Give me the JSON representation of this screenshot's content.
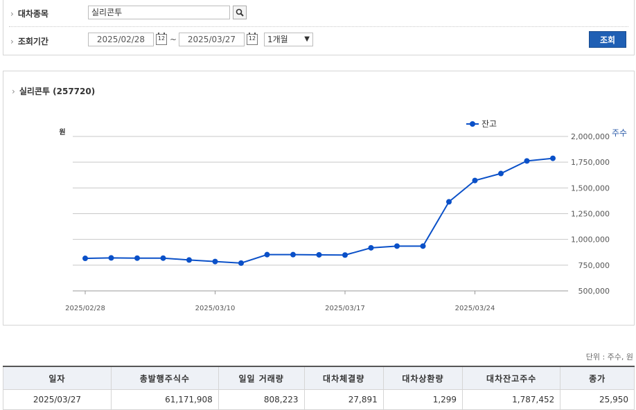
{
  "search": {
    "stock_label": "대차종목",
    "stock_value": "실리콘투",
    "period_label": "조회기간",
    "date_from": "2025/02/28",
    "date_to": "2025/03/27",
    "tilde": "~",
    "period_select": "1개월",
    "query_button": "조회",
    "calendar_icon_text": "12"
  },
  "chart_data": {
    "type": "line",
    "title": "실리콘투 (257720)",
    "left_unit": "원",
    "right_unit": "주수",
    "series": [
      {
        "name": "잔고",
        "color": "#0a50c8",
        "x": [
          "2025/02/28",
          "2025/03/04",
          "2025/03/05",
          "2025/03/06",
          "2025/03/07",
          "2025/03/10",
          "2025/03/11",
          "2025/03/12",
          "2025/03/13",
          "2025/03/14",
          "2025/03/17",
          "2025/03/18",
          "2025/03/19",
          "2025/03/20",
          "2025/03/21",
          "2025/03/24",
          "2025/03/25",
          "2025/03/26",
          "2025/03/27"
        ],
        "values": [
          816000,
          820000,
          818000,
          818000,
          800000,
          785000,
          770000,
          852000,
          852000,
          850000,
          848000,
          918000,
          935000,
          935000,
          1365000,
          1572000,
          1640000,
          1762000,
          1787452
        ]
      }
    ],
    "ylim": [
      500000,
      2000000
    ],
    "yticks": [
      "500,000",
      "750,000",
      "1,000,000",
      "1,250,000",
      "1,500,000",
      "1,750,000",
      "2,000,000"
    ],
    "xtick_labels": [
      "2025/02/28",
      "2025/03/10",
      "2025/03/17",
      "2025/03/24"
    ],
    "grid": true,
    "legend_position": "top-right"
  },
  "table": {
    "unit_note": "단위 : 주수, 원",
    "headers": [
      "일자",
      "총발행주식수",
      "일일 거래량",
      "대차체결량",
      "대차상환량",
      "대차잔고주수",
      "종가"
    ],
    "rows": [
      [
        "2025/03/27",
        "61,171,908",
        "808,223",
        "27,891",
        "1,299",
        "1,787,452",
        "25,950"
      ]
    ]
  }
}
